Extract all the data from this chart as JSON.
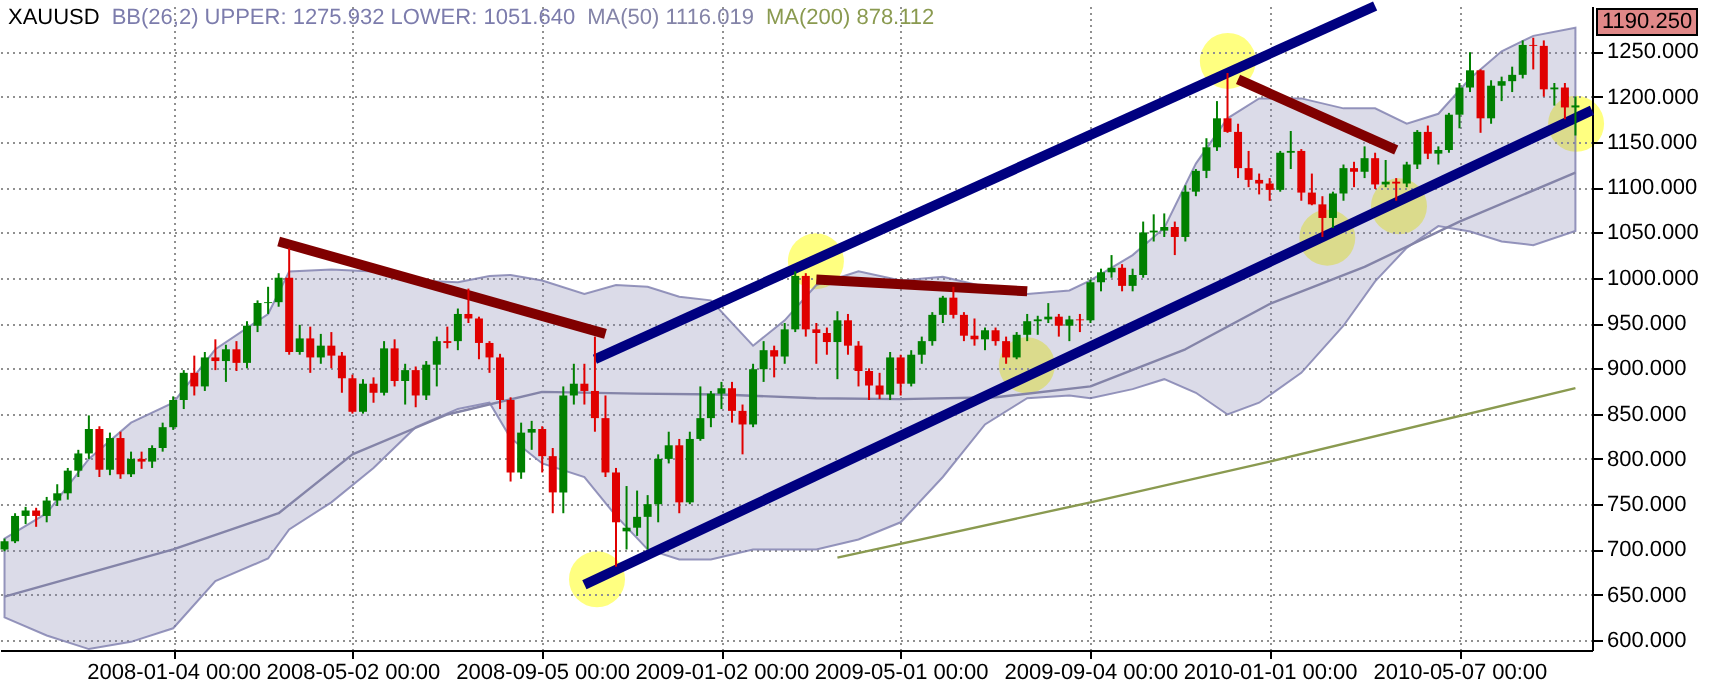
{
  "chart_data": {
    "type": "candlestick",
    "title": "XAUUSD",
    "legend": "top left",
    "grid": true,
    "xlim": [
      "2007-09-11",
      "2010-08-03"
    ],
    "xticks": [
      {
        "value": "2008-01-04",
        "label": "2008-01-04 00:00"
      },
      {
        "value": "2008-05-02",
        "label": "2008-05-02 00:00"
      },
      {
        "value": "2008-09-05",
        "label": "2008-09-05 00:00"
      },
      {
        "value": "2009-01-02",
        "label": "2009-01-02 00:00"
      },
      {
        "value": "2009-05-01",
        "label": "2009-05-01 00:00"
      },
      {
        "value": "2009-09-04",
        "label": "2009-09-04 00:00"
      },
      {
        "value": "2010-01-01",
        "label": "2010-01-01 00:00"
      },
      {
        "value": "2010-05-07",
        "label": "2010-05-07 00:00"
      }
    ],
    "ylim": [
      589,
      1300
    ],
    "yticks": [
      {
        "value": 600,
        "label": "600.000"
      },
      {
        "value": 650,
        "label": "650.000"
      },
      {
        "value": 700,
        "label": "700.000"
      },
      {
        "value": 750,
        "label": "750.000"
      },
      {
        "value": 800,
        "label": "800.000"
      },
      {
        "value": 850,
        "label": "850.000"
      },
      {
        "value": 900,
        "label": "900.000"
      },
      {
        "value": 950,
        "label": "950.000"
      },
      {
        "value": 1000,
        "label": "1000.000"
      },
      {
        "value": 1050,
        "label": "1050.000"
      },
      {
        "value": 1100,
        "label": "1100.000"
      },
      {
        "value": 1150,
        "label": "1150.000"
      },
      {
        "value": 1200,
        "label": "1200.000"
      },
      {
        "value": 1250,
        "label": "1250.000"
      }
    ],
    "x": [
      "2007-09-14",
      "2007-09-21",
      "2007-09-28",
      "2007-10-05",
      "2007-10-12",
      "2007-10-19",
      "2007-10-26",
      "2007-11-02",
      "2007-11-09",
      "2007-11-16",
      "2007-11-23",
      "2007-11-30",
      "2007-12-07",
      "2007-12-14",
      "2007-12-21",
      "2007-12-28",
      "2008-01-04",
      "2008-01-11",
      "2008-01-18",
      "2008-01-25",
      "2008-02-01",
      "2008-02-08",
      "2008-02-15",
      "2008-02-22",
      "2008-02-29",
      "2008-03-07",
      "2008-03-14",
      "2008-03-21",
      "2008-03-28",
      "2008-04-04",
      "2008-04-11",
      "2008-04-18",
      "2008-04-25",
      "2008-05-02",
      "2008-05-09",
      "2008-05-16",
      "2008-05-23",
      "2008-05-30",
      "2008-06-06",
      "2008-06-13",
      "2008-06-20",
      "2008-06-27",
      "2008-07-04",
      "2008-07-11",
      "2008-07-18",
      "2008-07-25",
      "2008-08-01",
      "2008-08-08",
      "2008-08-15",
      "2008-08-22",
      "2008-08-29",
      "2008-09-05",
      "2008-09-12",
      "2008-09-19",
      "2008-09-26",
      "2008-10-03",
      "2008-10-10",
      "2008-10-17",
      "2008-10-24",
      "2008-10-31",
      "2008-11-07",
      "2008-11-14",
      "2008-11-21",
      "2008-11-28",
      "2008-12-05",
      "2008-12-12",
      "2008-12-19",
      "2008-12-26",
      "2009-01-02",
      "2009-01-09",
      "2009-01-16",
      "2009-01-23",
      "2009-01-30",
      "2009-02-06",
      "2009-02-13",
      "2009-02-20",
      "2009-02-27",
      "2009-03-06",
      "2009-03-13",
      "2009-03-20",
      "2009-03-27",
      "2009-04-03",
      "2009-04-10",
      "2009-04-17",
      "2009-04-24",
      "2009-05-01",
      "2009-05-08",
      "2009-05-15",
      "2009-05-22",
      "2009-05-29",
      "2009-06-05",
      "2009-06-12",
      "2009-06-19",
      "2009-06-26",
      "2009-07-03",
      "2009-07-10",
      "2009-07-17",
      "2009-07-24",
      "2009-07-31",
      "2009-08-07",
      "2009-08-14",
      "2009-08-21",
      "2009-08-28",
      "2009-09-04",
      "2009-09-11",
      "2009-09-18",
      "2009-09-25",
      "2009-10-02",
      "2009-10-09",
      "2009-10-16",
      "2009-10-23",
      "2009-10-30",
      "2009-11-06",
      "2009-11-13",
      "2009-11-20",
      "2009-11-27",
      "2009-12-04",
      "2009-12-11",
      "2009-12-18",
      "2009-12-25",
      "2010-01-01",
      "2010-01-08",
      "2010-01-15",
      "2010-01-22",
      "2010-01-29",
      "2010-02-05",
      "2010-02-12",
      "2010-02-19",
      "2010-02-26",
      "2010-03-05",
      "2010-03-12",
      "2010-03-19",
      "2010-03-26",
      "2010-04-02",
      "2010-04-09",
      "2010-04-16",
      "2010-04-23",
      "2010-04-30",
      "2010-05-07",
      "2010-05-14",
      "2010-05-21",
      "2010-05-28",
      "2010-06-04",
      "2010-06-11",
      "2010-06-18",
      "2010-06-25",
      "2010-07-02",
      "2010-07-09",
      "2010-07-16",
      "2010-07-23"
    ],
    "ohlc": [
      [
        700,
        712,
        698,
        709
      ],
      [
        709,
        740,
        707,
        737
      ],
      [
        737,
        747,
        728,
        743
      ],
      [
        743,
        746,
        725,
        737
      ],
      [
        737,
        758,
        730,
        754
      ],
      [
        754,
        772,
        748,
        762
      ],
      [
        762,
        790,
        755,
        787
      ],
      [
        787,
        810,
        780,
        806
      ],
      [
        806,
        848,
        800,
        833
      ],
      [
        833,
        836,
        780,
        788
      ],
      [
        788,
        829,
        782,
        823
      ],
      [
        823,
        830,
        778,
        783
      ],
      [
        783,
        808,
        780,
        800
      ],
      [
        800,
        808,
        789,
        797
      ],
      [
        797,
        815,
        790,
        812
      ],
      [
        812,
        840,
        808,
        835
      ],
      [
        835,
        869,
        832,
        865
      ],
      [
        865,
        898,
        855,
        895
      ],
      [
        895,
        914,
        870,
        880
      ],
      [
        880,
        918,
        875,
        912
      ],
      [
        912,
        932,
        898,
        908
      ],
      [
        908,
        926,
        885,
        921
      ],
      [
        921,
        930,
        897,
        906
      ],
      [
        906,
        952,
        900,
        947
      ],
      [
        947,
        975,
        940,
        972
      ],
      [
        972,
        990,
        960,
        973
      ],
      [
        973,
        1005,
        968,
        1000
      ],
      [
        1000,
        1033,
        915,
        918
      ],
      [
        918,
        948,
        915,
        933
      ],
      [
        933,
        946,
        895,
        912
      ],
      [
        912,
        938,
        905,
        925
      ],
      [
        925,
        940,
        900,
        914
      ],
      [
        914,
        918,
        873,
        889
      ],
      [
        889,
        893,
        850,
        852
      ],
      [
        852,
        888,
        850,
        883
      ],
      [
        883,
        890,
        862,
        873
      ],
      [
        873,
        930,
        870,
        922
      ],
      [
        922,
        932,
        880,
        886
      ],
      [
        886,
        905,
        860,
        898
      ],
      [
        898,
        902,
        857,
        870
      ],
      [
        870,
        908,
        865,
        904
      ],
      [
        904,
        935,
        880,
        930
      ],
      [
        930,
        946,
        922,
        928
      ],
      [
        930,
        966,
        920,
        960
      ],
      [
        960,
        988,
        950,
        955
      ],
      [
        955,
        957,
        910,
        928
      ],
      [
        928,
        930,
        895,
        912
      ],
      [
        912,
        916,
        855,
        865
      ],
      [
        865,
        868,
        775,
        785
      ],
      [
        785,
        840,
        778,
        829
      ],
      [
        829,
        842,
        810,
        833
      ],
      [
        833,
        836,
        785,
        803
      ],
      [
        803,
        812,
        740,
        763
      ],
      [
        763,
        880,
        740,
        870
      ],
      [
        870,
        905,
        860,
        883
      ],
      [
        883,
        905,
        860,
        875
      ],
      [
        875,
        935,
        830,
        845
      ],
      [
        845,
        870,
        780,
        785
      ],
      [
        785,
        790,
        681,
        730
      ],
      [
        720,
        770,
        700,
        724
      ],
      [
        724,
        765,
        715,
        736
      ],
      [
        736,
        760,
        700,
        750
      ],
      [
        750,
        805,
        730,
        800
      ],
      [
        800,
        830,
        795,
        815
      ],
      [
        815,
        822,
        740,
        752
      ],
      [
        752,
        830,
        750,
        822
      ],
      [
        822,
        880,
        820,
        845
      ],
      [
        845,
        875,
        835,
        872
      ],
      [
        872,
        885,
        855,
        878
      ],
      [
        878,
        885,
        840,
        853
      ],
      [
        853,
        860,
        805,
        838
      ],
      [
        838,
        905,
        835,
        899
      ],
      [
        899,
        930,
        885,
        920
      ],
      [
        920,
        925,
        890,
        913
      ],
      [
        913,
        950,
        905,
        943
      ],
      [
        943,
        1007,
        940,
        1002
      ],
      [
        1002,
        1005,
        935,
        943
      ],
      [
        943,
        950,
        905,
        939
      ],
      [
        939,
        945,
        915,
        929
      ],
      [
        929,
        963,
        888,
        953
      ],
      [
        953,
        960,
        915,
        925
      ],
      [
        925,
        930,
        880,
        897
      ],
      [
        897,
        900,
        865,
        881
      ],
      [
        881,
        895,
        866,
        871
      ],
      [
        871,
        918,
        865,
        912
      ],
      [
        912,
        915,
        870,
        883
      ],
      [
        883,
        920,
        880,
        915
      ],
      [
        915,
        935,
        905,
        930
      ],
      [
        930,
        962,
        925,
        959
      ],
      [
        959,
        980,
        950,
        978
      ],
      [
        978,
        990,
        955,
        959
      ],
      [
        959,
        962,
        930,
        936
      ],
      [
        936,
        955,
        925,
        932
      ],
      [
        932,
        945,
        920,
        942
      ],
      [
        942,
        945,
        925,
        930
      ],
      [
        930,
        935,
        905,
        912
      ],
      [
        912,
        940,
        910,
        937
      ],
      [
        937,
        960,
        930,
        952
      ],
      [
        952,
        958,
        937,
        954
      ],
      [
        954,
        972,
        950,
        957
      ],
      [
        957,
        960,
        935,
        947
      ],
      [
        947,
        958,
        930,
        954
      ],
      [
        954,
        960,
        940,
        953
      ],
      [
        953,
        998,
        950,
        995
      ],
      [
        995,
        1010,
        985,
        1006
      ],
      [
        1006,
        1025,
        1000,
        1011
      ],
      [
        1011,
        1015,
        985,
        991
      ],
      [
        991,
        1010,
        985,
        1003
      ],
      [
        1003,
        1062,
        1000,
        1050
      ],
      [
        1050,
        1070,
        1040,
        1052
      ],
      [
        1052,
        1071,
        1045,
        1056
      ],
      [
        1056,
        1062,
        1025,
        1045
      ],
      [
        1045,
        1102,
        1040,
        1095
      ],
      [
        1095,
        1120,
        1090,
        1118
      ],
      [
        1118,
        1154,
        1110,
        1144
      ],
      [
        1144,
        1195,
        1140,
        1176
      ],
      [
        1176,
        1226,
        1160,
        1161
      ],
      [
        1161,
        1170,
        1110,
        1121
      ],
      [
        1121,
        1140,
        1100,
        1108
      ],
      [
        1108,
        1115,
        1092,
        1104
      ],
      [
        1104,
        1110,
        1085,
        1097
      ],
      [
        1097,
        1140,
        1095,
        1138
      ],
      [
        1138,
        1162,
        1120,
        1140
      ],
      [
        1140,
        1142,
        1085,
        1094
      ],
      [
        1094,
        1115,
        1080,
        1081
      ],
      [
        1081,
        1090,
        1045,
        1066
      ],
      [
        1066,
        1095,
        1055,
        1093
      ],
      [
        1093,
        1125,
        1085,
        1121
      ],
      [
        1121,
        1128,
        1100,
        1117
      ],
      [
        1117,
        1145,
        1110,
        1132
      ],
      [
        1132,
        1138,
        1098,
        1103
      ],
      [
        1103,
        1130,
        1100,
        1106
      ],
      [
        1106,
        1110,
        1085,
        1104
      ],
      [
        1104,
        1128,
        1100,
        1125
      ],
      [
        1125,
        1163,
        1120,
        1161
      ],
      [
        1161,
        1168,
        1131,
        1137
      ],
      [
        1137,
        1145,
        1125,
        1141
      ],
      [
        1141,
        1182,
        1138,
        1180
      ],
      [
        1180,
        1215,
        1165,
        1210
      ],
      [
        1210,
        1249,
        1205,
        1229
      ],
      [
        1229,
        1230,
        1160,
        1176
      ],
      [
        1176,
        1218,
        1170,
        1212
      ],
      [
        1212,
        1222,
        1195,
        1217
      ],
      [
        1217,
        1233,
        1205,
        1224
      ],
      [
        1224,
        1262,
        1220,
        1257
      ],
      [
        1257,
        1265,
        1230,
        1256
      ],
      [
        1256,
        1262,
        1200,
        1208
      ],
      [
        1208,
        1215,
        1190,
        1210
      ],
      [
        1210,
        1215,
        1175,
        1188
      ],
      [
        1188,
        1200,
        1157,
        1190.25
      ]
    ],
    "colors": [
      "#008000",
      "#008000",
      "#008000",
      "#e00000",
      "#008000",
      "#008000",
      "#008000",
      "#008000",
      "#008000",
      "#e00000",
      "#008000",
      "#e00000",
      "#008000",
      "#e00000",
      "#008000",
      "#008000",
      "#008000",
      "#008000",
      "#e00000",
      "#008000",
      "#e00000",
      "#008000",
      "#e00000",
      "#008000",
      "#008000",
      "#008000",
      "#008000",
      "#e00000",
      "#008000",
      "#e00000",
      "#008000",
      "#e00000",
      "#e00000",
      "#e00000",
      "#008000",
      "#e00000",
      "#008000",
      "#e00000",
      "#008000",
      "#e00000",
      "#008000",
      "#008000",
      "#e00000",
      "#008000",
      "#e00000",
      "#e00000",
      "#e00000",
      "#e00000",
      "#e00000",
      "#008000",
      "#008000",
      "#e00000",
      "#e00000",
      "#008000",
      "#008000",
      "#e00000",
      "#e00000",
      "#e00000",
      "#e00000",
      "#008000",
      "#008000",
      "#008000",
      "#008000",
      "#008000",
      "#e00000",
      "#008000",
      "#008000",
      "#008000",
      "#008000",
      "#e00000",
      "#e00000",
      "#008000",
      "#008000",
      "#e00000",
      "#008000",
      "#008000",
      "#e00000",
      "#e00000",
      "#e00000",
      "#008000",
      "#e00000",
      "#e00000",
      "#e00000",
      "#e00000",
      "#008000",
      "#e00000",
      "#008000",
      "#008000",
      "#008000",
      "#008000",
      "#e00000",
      "#e00000",
      "#e00000",
      "#008000",
      "#e00000",
      "#e00000",
      "#008000",
      "#008000",
      "#008000",
      "#008000",
      "#e00000",
      "#008000",
      "#e00000",
      "#008000",
      "#008000",
      "#008000",
      "#e00000",
      "#008000",
      "#008000",
      "#008000",
      "#008000",
      "#e00000",
      "#008000",
      "#008000",
      "#008000",
      "#008000",
      "#e00000",
      "#e00000",
      "#e00000",
      "#e00000",
      "#e00000",
      "#008000",
      "#008000",
      "#e00000",
      "#e00000",
      "#e00000",
      "#008000",
      "#008000",
      "#e00000",
      "#008000",
      "#e00000",
      "#008000",
      "#e00000",
      "#008000",
      "#008000",
      "#e00000",
      "#008000",
      "#008000",
      "#008000",
      "#008000",
      "#e00000",
      "#008000",
      "#008000",
      "#008000",
      "#008000",
      "#e00000",
      "#e00000",
      "#008000",
      "#e00000",
      "#008000"
    ],
    "series": [
      {
        "name": "BB(26,2) UPPER: 1275.932 LOWER: 1051.640",
        "type": "line",
        "color": "#7c7cac",
        "x": [
          "2007-09-14",
          "2007-10-12",
          "2007-11-09",
          "2007-12-07",
          "2008-01-04",
          "2008-02-01",
          "2008-03-07",
          "2008-03-21",
          "2008-04-18",
          "2008-05-16",
          "2008-06-13",
          "2008-07-11",
          "2008-08-01",
          "2008-08-15",
          "2008-09-05",
          "2008-10-03",
          "2008-10-24",
          "2008-11-14",
          "2008-12-05",
          "2008-12-26",
          "2009-01-23",
          "2009-02-13",
          "2009-03-06",
          "2009-04-03",
          "2009-05-01",
          "2009-05-29",
          "2009-06-26",
          "2009-07-24",
          "2009-08-21",
          "2009-09-04",
          "2009-10-02",
          "2009-10-23",
          "2009-11-13",
          "2009-12-04",
          "2009-12-25",
          "2010-01-22",
          "2010-02-19",
          "2010-03-12",
          "2010-04-02",
          "2010-04-23",
          "2010-05-14",
          "2010-06-04",
          "2010-06-25",
          "2010-07-23"
        ],
        "values": [
          null,
          null,
          null,
          null,
          null,
          null,
          null,
          null,
          null,
          null,
          null,
          null,
          null,
          null,
          null,
          null,
          null,
          null,
          null,
          null,
          null,
          null,
          null,
          null,
          null,
          null,
          null,
          null,
          null,
          null,
          null,
          null,
          null,
          null,
          null,
          null,
          null,
          null,
          null,
          null,
          null,
          null,
          null,
          null
        ],
        "upper": [
          712,
          740,
          800,
          840,
          862,
          921,
          960,
          1007,
          1009,
          1007,
          997,
          995,
          1002,
          1003,
          997,
          982,
          992,
          990,
          979,
          975,
          925,
          953,
          992,
          1007,
          997,
          1001,
          990,
          982,
          986,
          997,
          1025,
          1055,
          1126,
          1176,
          1198,
          1198,
          1187,
          1187,
          1170,
          1181,
          1220,
          1250,
          1267,
          1275.932
        ],
        "lower": [
          625,
          605,
          590,
          598,
          613,
          665,
          690,
          722,
          752,
          790,
          835,
          855,
          862,
          823,
          795,
          780,
          737,
          700,
          689,
          689,
          700,
          700,
          700,
          711,
          730,
          780,
          838,
          867,
          870,
          867,
          877,
          888,
          873,
          849,
          862,
          895,
          947,
          996,
          1033,
          1057,
          1051,
          1040,
          1036,
          1051.64
        ]
      },
      {
        "name": "MA(50) 1116.019",
        "type": "line",
        "color": "#8484a8",
        "x": [
          "2007-09-14",
          "2008-01-04",
          "2008-03-14",
          "2008-05-02",
          "2008-07-04",
          "2008-09-05",
          "2008-11-07",
          "2009-01-02",
          "2009-03-06",
          "2009-05-01",
          "2009-07-03",
          "2009-09-04",
          "2009-11-06",
          "2010-01-01",
          "2010-03-05",
          "2010-05-07",
          "2010-07-23"
        ],
        "values": [
          648,
          700,
          740,
          805,
          849,
          874,
          872,
          871,
          867,
          866,
          868,
          880,
          921,
          971,
          1012,
          1062,
          1116.019
        ]
      },
      {
        "name": "MA(200) 878.112",
        "type": "line",
        "color": "#8a9a50",
        "x": [
          "2009-03-20",
          "2009-09-04",
          "2010-01-01",
          "2010-07-23"
        ],
        "values": [
          691,
          752,
          797,
          878.112
        ]
      },
      {
        "type": "line",
        "color": "#800000",
        "x": [
          "2008-03-14",
          "2008-10-17"
        ],
        "values": [
          1040,
          938
        ]
      },
      {
        "type": "line",
        "color": "#800000",
        "x": [
          "2009-03-06",
          "2009-07-24"
        ],
        "values": [
          998,
          985
        ]
      },
      {
        "type": "line",
        "color": "#800000",
        "x": [
          "2009-12-11",
          "2010-03-26"
        ],
        "values": [
          1219,
          1141
        ]
      },
      {
        "type": "line",
        "color": "#000080",
        "x": [
          "2008-10-10",
          "2010-03-12"
        ],
        "values": [
          910,
          1300
        ]
      },
      {
        "type": "line",
        "color": "#000080",
        "x": [
          "2008-10-03",
          "2010-08-03"
        ],
        "values": [
          661,
          1185
        ]
      }
    ],
    "annotations": [
      "1190.250"
    ]
  }
}
